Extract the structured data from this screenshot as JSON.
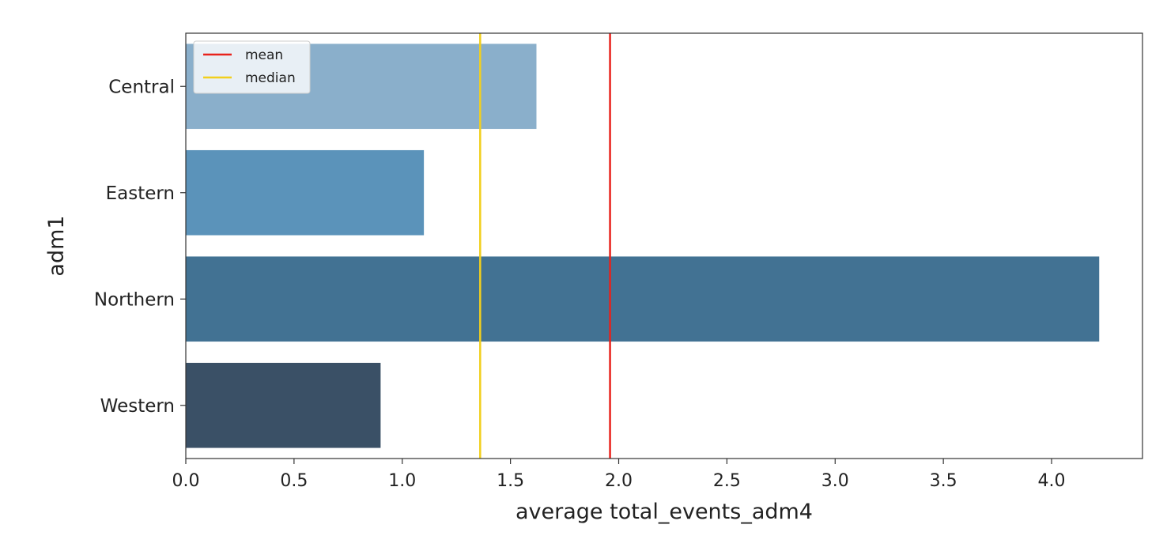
{
  "chart_data": {
    "type": "bar",
    "orientation": "horizontal",
    "categories": [
      "Central",
      "Eastern",
      "Northern",
      "Western"
    ],
    "values": [
      1.62,
      1.1,
      4.22,
      0.9
    ],
    "bar_colors": [
      "#8aafcb",
      "#5b93ba",
      "#427293",
      "#3a5066"
    ],
    "title": "",
    "xlabel": "average total_events_adm4",
    "ylabel": "adm1",
    "xlim": [
      0.0,
      4.42
    ],
    "xticks": [
      0.0,
      0.5,
      1.0,
      1.5,
      2.0,
      2.5,
      3.0,
      3.5,
      4.0
    ],
    "xtick_labels": [
      "0.0",
      "0.5",
      "1.0",
      "1.5",
      "2.0",
      "2.5",
      "3.0",
      "3.5",
      "4.0"
    ],
    "reference_lines": [
      {
        "name": "mean",
        "value": 1.96,
        "color": "#e8221c"
      },
      {
        "name": "median",
        "value": 1.36,
        "color": "#f2cf1d"
      }
    ],
    "legend": {
      "position": "top-left",
      "entries": [
        {
          "label": "mean",
          "color": "#e8221c"
        },
        {
          "label": "median",
          "color": "#f2cf1d"
        }
      ]
    },
    "grid": false
  }
}
